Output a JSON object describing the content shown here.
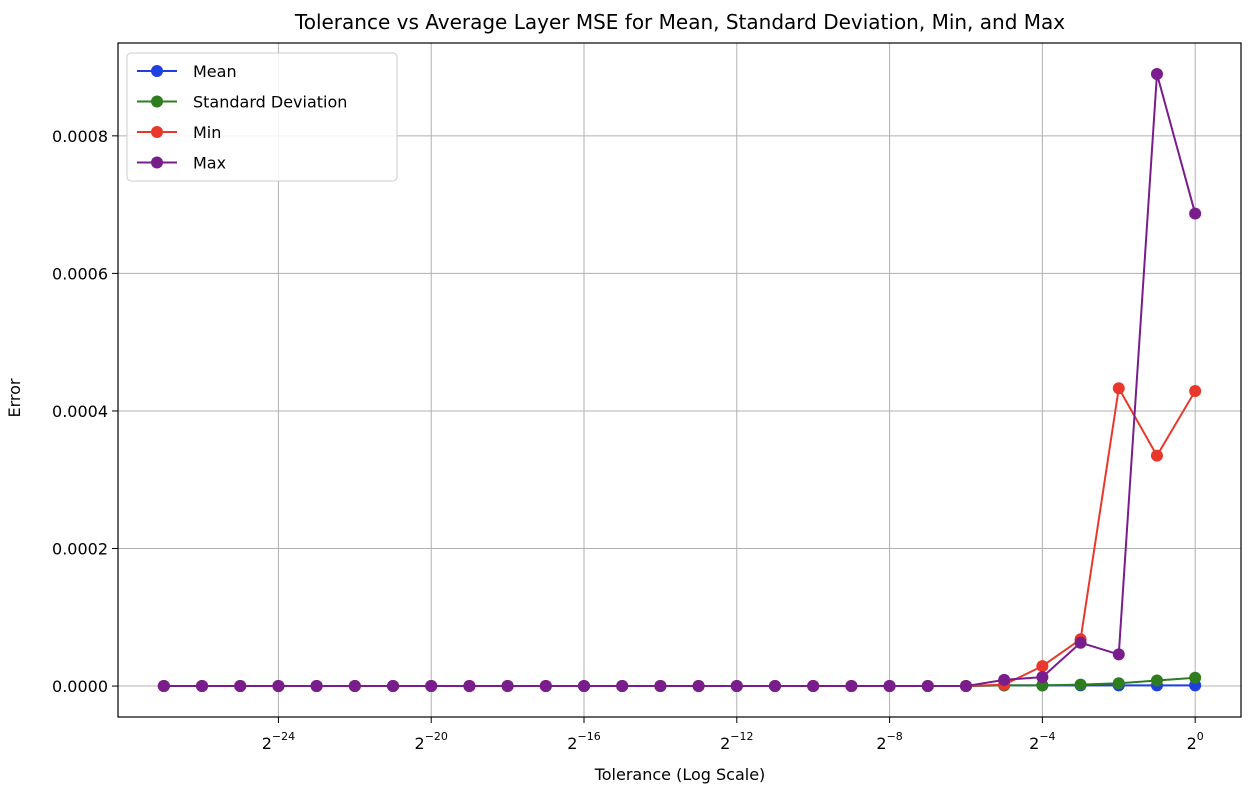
{
  "chart_data": {
    "type": "line",
    "title": "Tolerance vs Average Layer MSE for Mean, Standard Deviation, Min, and Max",
    "xlabel": "Tolerance (Log Scale)",
    "ylabel": "Error",
    "x_scale": "log2",
    "x_exponents": [
      -27,
      -26,
      -25,
      -24,
      -23,
      -22,
      -21,
      -20,
      -19,
      -18,
      -17,
      -16,
      -15,
      -14,
      -13,
      -12,
      -11,
      -10,
      -9,
      -8,
      -7,
      -6,
      -5,
      -4,
      -3,
      -2,
      -1,
      0
    ],
    "xlim_exponents": [
      -28.2,
      1.2
    ],
    "ylim": [
      -4.5e-05,
      0.000935
    ],
    "x_ticks": [
      {
        "exp": -24,
        "base": "2",
        "sup": "−24"
      },
      {
        "exp": -20,
        "base": "2",
        "sup": "−20"
      },
      {
        "exp": -16,
        "base": "2",
        "sup": "−16"
      },
      {
        "exp": -12,
        "base": "2",
        "sup": "−12"
      },
      {
        "exp": -8,
        "base": "2",
        "sup": "−8"
      },
      {
        "exp": -4,
        "base": "2",
        "sup": "−4"
      },
      {
        "exp": 0,
        "base": "2",
        "sup": "0"
      }
    ],
    "y_ticks": [
      {
        "value": 0.0,
        "label": "0.0000"
      },
      {
        "value": 0.0002,
        "label": "0.0002"
      },
      {
        "value": 0.0004,
        "label": "0.0004"
      },
      {
        "value": 0.0006,
        "label": "0.0006"
      },
      {
        "value": 0.0008,
        "label": "0.0008"
      }
    ],
    "grid": true,
    "legend_position": "top-left",
    "series": [
      {
        "name": "Mean",
        "color": "#1f3fe0",
        "values": [
          0,
          0,
          0,
          0,
          0,
          0,
          0,
          0,
          0,
          0,
          0,
          0,
          0,
          0,
          0,
          0,
          0,
          0,
          0,
          0,
          0,
          0,
          1e-06,
          1e-06,
          1e-06,
          1e-06,
          1e-06,
          1e-06
        ]
      },
      {
        "name": "Standard Deviation",
        "color": "#2e7d1f",
        "values": [
          0,
          0,
          0,
          0,
          0,
          0,
          0,
          0,
          0,
          0,
          0,
          0,
          0,
          0,
          0,
          0,
          0,
          0,
          0,
          0,
          0,
          0,
          1e-06,
          1e-06,
          2e-06,
          4e-06,
          8e-06,
          1.2e-05
        ]
      },
      {
        "name": "Min",
        "color": "#e8382c",
        "values": [
          0,
          0,
          0,
          0,
          0,
          0,
          0,
          0,
          0,
          0,
          0,
          0,
          0,
          0,
          0,
          0,
          0,
          0,
          0,
          0,
          0,
          0,
          2e-06,
          2.9e-05,
          6.8e-05,
          0.000433,
          0.000335,
          0.000429
        ]
      },
      {
        "name": "Max",
        "color": "#7a1d8c",
        "values": [
          0,
          0,
          0,
          0,
          0,
          0,
          0,
          0,
          0,
          0,
          0,
          0,
          0,
          0,
          0,
          0,
          0,
          0,
          0,
          0,
          0,
          0,
          9e-06,
          1.3e-05,
          6.3e-05,
          4.6e-05,
          0.00089,
          0.000687
        ]
      }
    ]
  }
}
